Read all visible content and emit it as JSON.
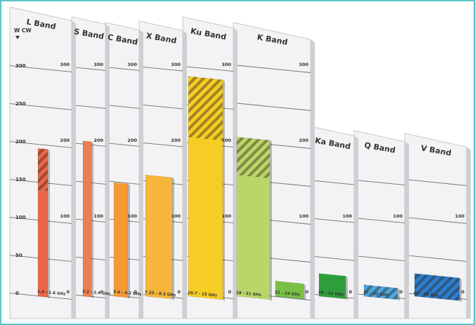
{
  "chart_data": {
    "type": "bar",
    "title": "",
    "y_unit": "W CW",
    "ylim": [
      0,
      300
    ],
    "y_ticks": [
      0,
      50,
      100,
      150,
      200,
      250,
      300
    ],
    "back_ticks": [
      0,
      100,
      200,
      300
    ],
    "hatch_note": "hatched upper section of bar",
    "bands": [
      {
        "name": "L Band",
        "range_label": "1.4 - 1.6 GHz",
        "bars": [
          {
            "min": 0,
            "max": 195,
            "hatch_from": 140,
            "color": "#e8674a"
          }
        ]
      },
      {
        "name": "S Band",
        "range_label": "2.2 - 2.4 GHz",
        "bars": [
          {
            "min": 0,
            "max": 205,
            "hatch_from": null,
            "color": "#ec7e4f"
          }
        ]
      },
      {
        "name": "C Band",
        "range_label": "3.4 - 4.2 GHz",
        "bars": [
          {
            "min": 0,
            "max": 150,
            "hatch_from": null,
            "color": "#f39a37"
          }
        ]
      },
      {
        "name": "X Band",
        "range_label": "7.25 - 8.5 GHz",
        "bars": [
          {
            "min": 0,
            "max": 160,
            "hatch_from": null,
            "color": "#f6b63a"
          }
        ]
      },
      {
        "name": "Ku Band",
        "range_label": "10.7 - 15 GHz",
        "bars": [
          {
            "min": 0,
            "max": 290,
            "hatch_from": 210,
            "color": "#f5cd24"
          }
        ]
      },
      {
        "name": "K Band",
        "range_label": "18 - 21 GHz",
        "bars": [
          {
            "min": 0,
            "max": 210,
            "hatch_from": 160,
            "color": "#b9d768"
          }
        ]
      },
      {
        "name": "",
        "range_label": "22 - 24 GHz",
        "bars": [
          {
            "min": 0,
            "max": 20,
            "hatch_from": null,
            "color": "#79c045"
          }
        ]
      },
      {
        "name": "Ka Band",
        "range_label": "26 - 32 GHz",
        "bars": [
          {
            "min": 0,
            "max": 30,
            "hatch_from": null,
            "color": "#2e9e3b"
          }
        ]
      },
      {
        "name": "Q Band",
        "range_label": "37 - 42 GHz",
        "bars": [
          {
            "min": 0,
            "max": 15,
            "hatch_from": 0,
            "color": "#4aa9e3"
          }
        ]
      },
      {
        "name": "V Band",
        "range_label": "60 - 65 GHz",
        "bars": [
          {
            "min": 0,
            "max": 30,
            "hatch_from": 0,
            "color": "#2a7fd1"
          }
        ]
      }
    ]
  }
}
